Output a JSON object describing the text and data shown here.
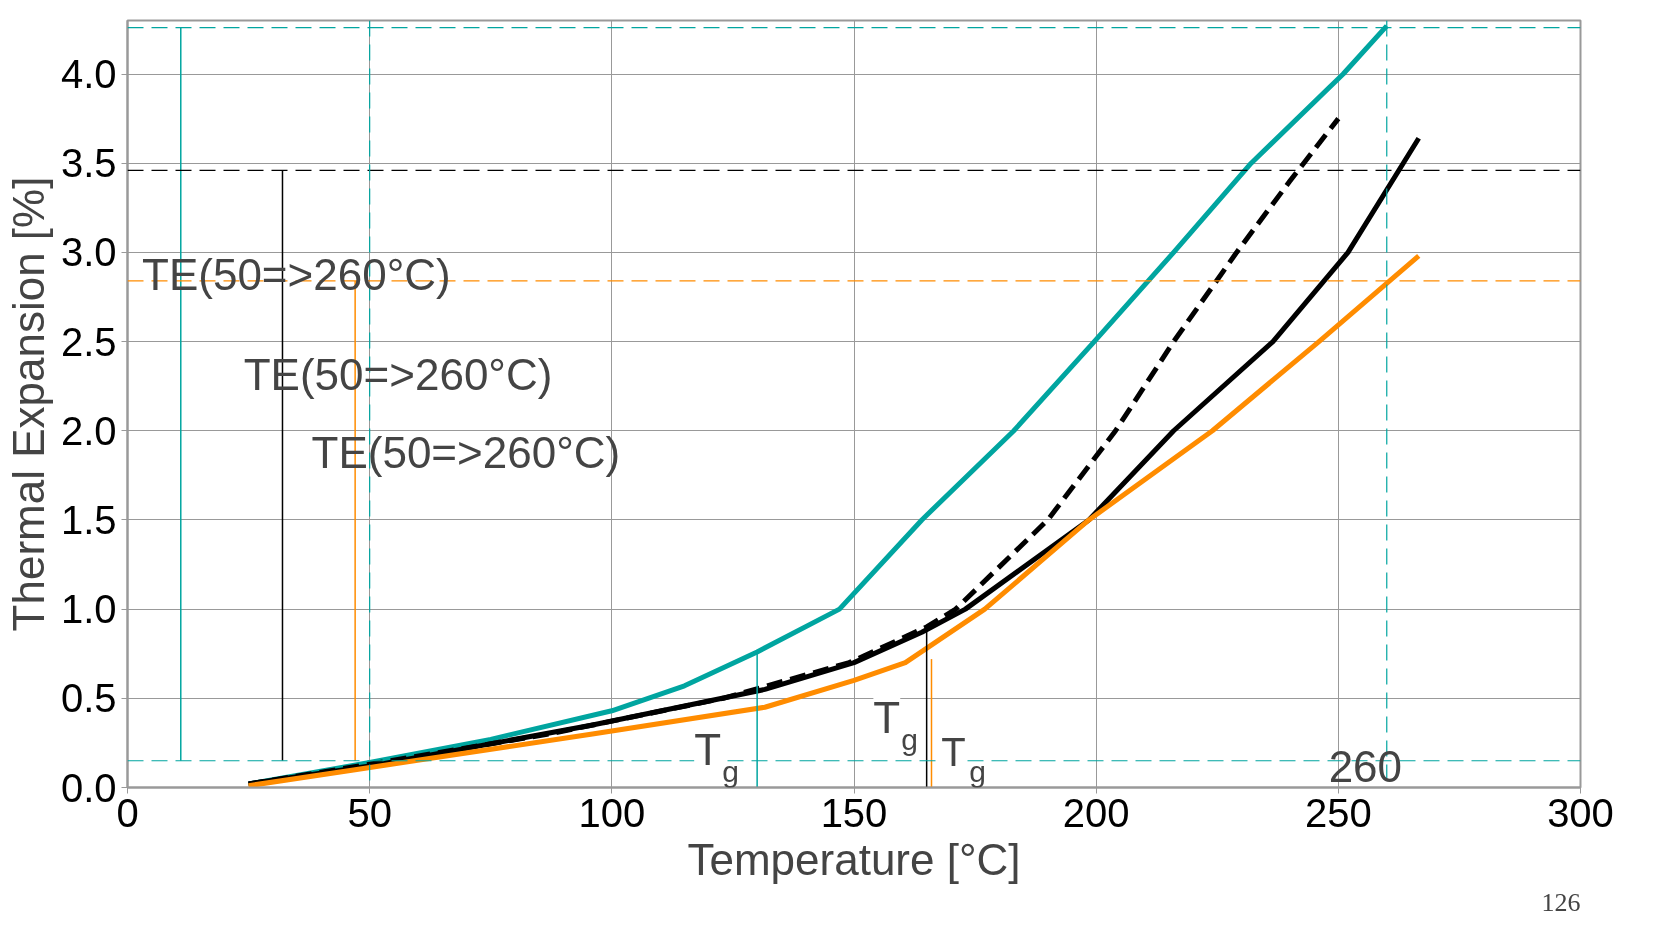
{
  "chart_data": {
    "type": "line",
    "xlabel": "Temperature [°C]",
    "ylabel": "Thermal Expansion [%]",
    "xlim": [
      0,
      300
    ],
    "ylim": [
      0,
      4.3
    ],
    "xticks": [
      0,
      50,
      100,
      150,
      200,
      250,
      300
    ],
    "yticks": [
      {
        "value": 0,
        "label": "0.0"
      },
      0.5,
      {
        "value": 1,
        "label": "1.0"
      },
      1.5,
      {
        "value": 2,
        "label": "2.0"
      },
      2.5,
      {
        "value": 3,
        "label": "3.0"
      },
      3.5,
      {
        "value": 4,
        "label": "4.0"
      }
    ],
    "grid": true,
    "series": [
      {
        "color": "#00a5a0",
        "line_style": "solid",
        "x": [
          25,
          50,
          75,
          100,
          115,
          130,
          147,
          164,
          183,
          199.6,
          216,
          232,
          251,
          260
        ],
        "values": [
          0.02,
          0.14,
          0.27,
          0.43,
          0.57,
          0.76,
          1.0,
          1.5,
          2.0,
          2.5,
          3.0,
          3.5,
          4.0,
          4.27
        ]
      },
      {
        "color": "#000000",
        "line_style": "dashed",
        "x": [
          25,
          50,
          87,
          123,
          149,
          165,
          171,
          190,
          204,
          216,
          229,
          240,
          250
        ],
        "values": [
          0.02,
          0.13,
          0.3,
          0.5,
          0.7,
          0.9,
          1.0,
          1.5,
          2.0,
          2.5,
          3.0,
          3.4,
          3.75
        ]
      },
      {
        "color": "#000000",
        "line_style": "solid",
        "x": [
          25,
          50,
          96,
          131.6,
          150,
          164,
          173,
          198.5,
          216,
          236.5,
          252,
          266.6
        ],
        "values": [
          0.02,
          0.12,
          0.35,
          0.55,
          0.7,
          0.87,
          1.0,
          1.5,
          2.0,
          2.5,
          3.0,
          3.64
        ]
      },
      {
        "color": "#ff8c00",
        "line_style": "solid",
        "x": [
          25,
          47,
          96,
          131.6,
          150,
          160.6,
          177,
          198.5,
          224,
          246,
          266.6
        ],
        "values": [
          0.01,
          0.1,
          0.3,
          0.45,
          0.6,
          0.7,
          1.0,
          1.5,
          2.0,
          2.5,
          2.98
        ]
      },
      {
        "color": "#00a5a0",
        "line_style": "solid",
        "x": [
          130,
          130
        ],
        "values": [
          0,
          0.76
        ]
      },
      {
        "color": "#000000",
        "line_style": "solid",
        "x": [
          165,
          165
        ],
        "values": [
          0,
          0.88
        ]
      },
      {
        "color": "#ff8c00",
        "line_style": "solid",
        "x": [
          166,
          166
        ],
        "values": [
          0,
          0.72
        ]
      },
      {
        "color": "#00a5a0",
        "line_style": "solid",
        "x": [
          11,
          11
        ],
        "values": [
          0.15,
          4.26
        ]
      },
      {
        "color": "#000000",
        "line_style": "solid",
        "x": [
          32,
          32
        ],
        "values": [
          0.15,
          3.46
        ]
      },
      {
        "color": "#ff8c00",
        "line_style": "solid",
        "x": [
          47,
          47
        ],
        "values": [
          0.15,
          2.84
        ]
      }
    ],
    "ref_lines": [
      {
        "axis": "y",
        "value": 4.26,
        "color": "#00a5a0",
        "line_style": "dashed"
      },
      {
        "axis": "y",
        "value": 3.46,
        "color": "#000000",
        "line_style": "dashed"
      },
      {
        "axis": "y",
        "value": 2.84,
        "color": "#ff8c00",
        "line_style": "dashed"
      },
      {
        "axis": "y",
        "value": 0.15,
        "color": "#00a5a0",
        "line_style": "dashed"
      },
      {
        "axis": "x",
        "value": 50,
        "color": "#00a5a0",
        "line_style": "dashed"
      },
      {
        "axis": "x",
        "value": 260,
        "color": "#00a5a0",
        "line_style": "dashed"
      }
    ],
    "annotations": [
      "TE(50=>260°C)",
      "TE(50=>260°C)",
      "TE(50=>260°C)",
      "T$_{g}$",
      "T$_{g}$",
      "T$_{g}$",
      "260",
      "126"
    ]
  }
}
